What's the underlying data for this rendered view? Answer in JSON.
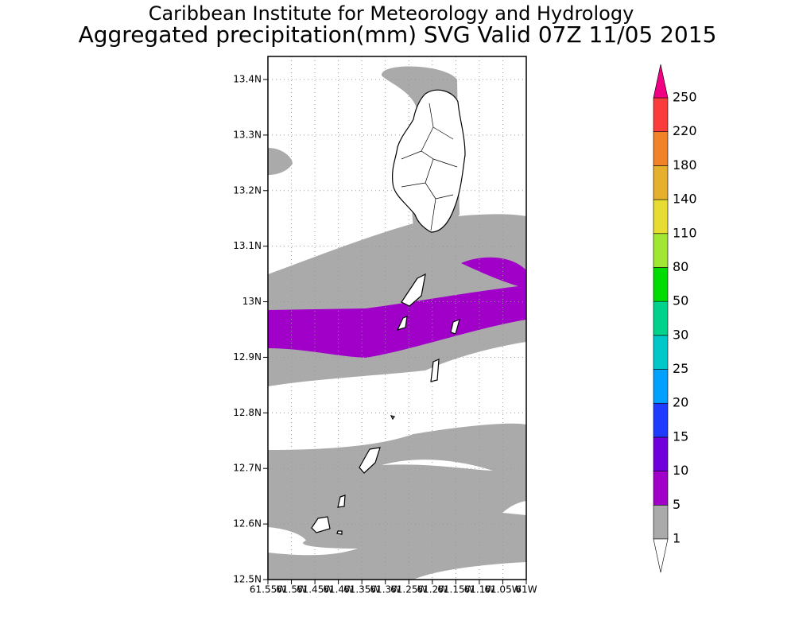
{
  "title": "Caribbean Institute for Meteorology and Hydrology",
  "subtitle": "Aggregated precipitation(mm) SVG Valid 07Z 11/05 2015",
  "lat_ticks": [
    "13.4N",
    "13.3N",
    "13.2N",
    "13.1N",
    "13N",
    "12.9N",
    "12.8N",
    "12.7N",
    "12.6N",
    "12.5N"
  ],
  "lon_ticks": [
    "61.55W",
    "61.5W",
    "61.45W",
    "61.4W",
    "61.35W",
    "61.3W",
    "61.25W",
    "61.2W",
    "61.15W",
    "61.1W",
    "61.05W",
    "61W"
  ],
  "legend": {
    "levels": [
      1,
      5,
      10,
      15,
      20,
      25,
      30,
      50,
      80,
      110,
      140,
      180,
      220,
      250
    ],
    "colors": [
      "#aaaaaa",
      "#a000c8",
      "#6e00dc",
      "#1e3cff",
      "#00a0ff",
      "#00c8c8",
      "#00d28c",
      "#00dc00",
      "#a0e632",
      "#e6dc32",
      "#e6af2d",
      "#f08228",
      "#fa3c3c"
    ],
    "below_color": "#ffffff",
    "above_color": "#f00082"
  }
}
